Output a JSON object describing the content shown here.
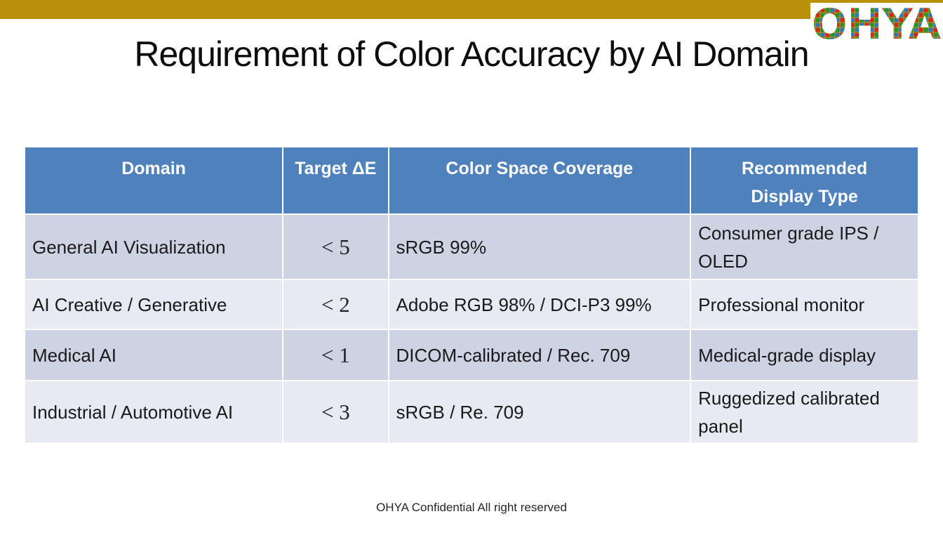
{
  "page": {
    "title": "Requirement of Color Accuracy by AI Domain",
    "footer": "OHYA Confidential All right reserved",
    "logo_text": "OHYA"
  },
  "colors": {
    "top_bar": "#B8900A",
    "header_bg": "#4F81BD",
    "header_text": "#FFFFFF",
    "row_dark": "#CDD3E3",
    "row_light": "#E7EAF3",
    "body_text": "#1A1A1A",
    "logo_gold": "#C39B08",
    "logo_red": "#CC2A1E",
    "logo_green": "#239332",
    "logo_blue": "#2E76C0"
  },
  "table": {
    "columns": [
      "Domain",
      "Target ΔE",
      "Color Space Coverage",
      "Recommended Display Type"
    ],
    "rows": [
      {
        "domain": "General AI Visualization",
        "target_de": "< 5",
        "coverage": "sRGB 99%",
        "display": "Consumer grade IPS / OLED"
      },
      {
        "domain": "AI Creative / Generative",
        "target_de": "< 2",
        "coverage": "Adobe RGB 98% / DCI-P3 99%",
        "display": "Professional monitor"
      },
      {
        "domain": "Medical AI",
        "target_de": "< 1",
        "coverage": "DICOM-calibrated / Rec. 709",
        "display": "Medical-grade display"
      },
      {
        "domain": "Industrial / Automotive AI",
        "target_de": "< 3",
        "coverage": "sRGB / Re. 709",
        "display": "Ruggedized calibrated panel"
      }
    ]
  }
}
